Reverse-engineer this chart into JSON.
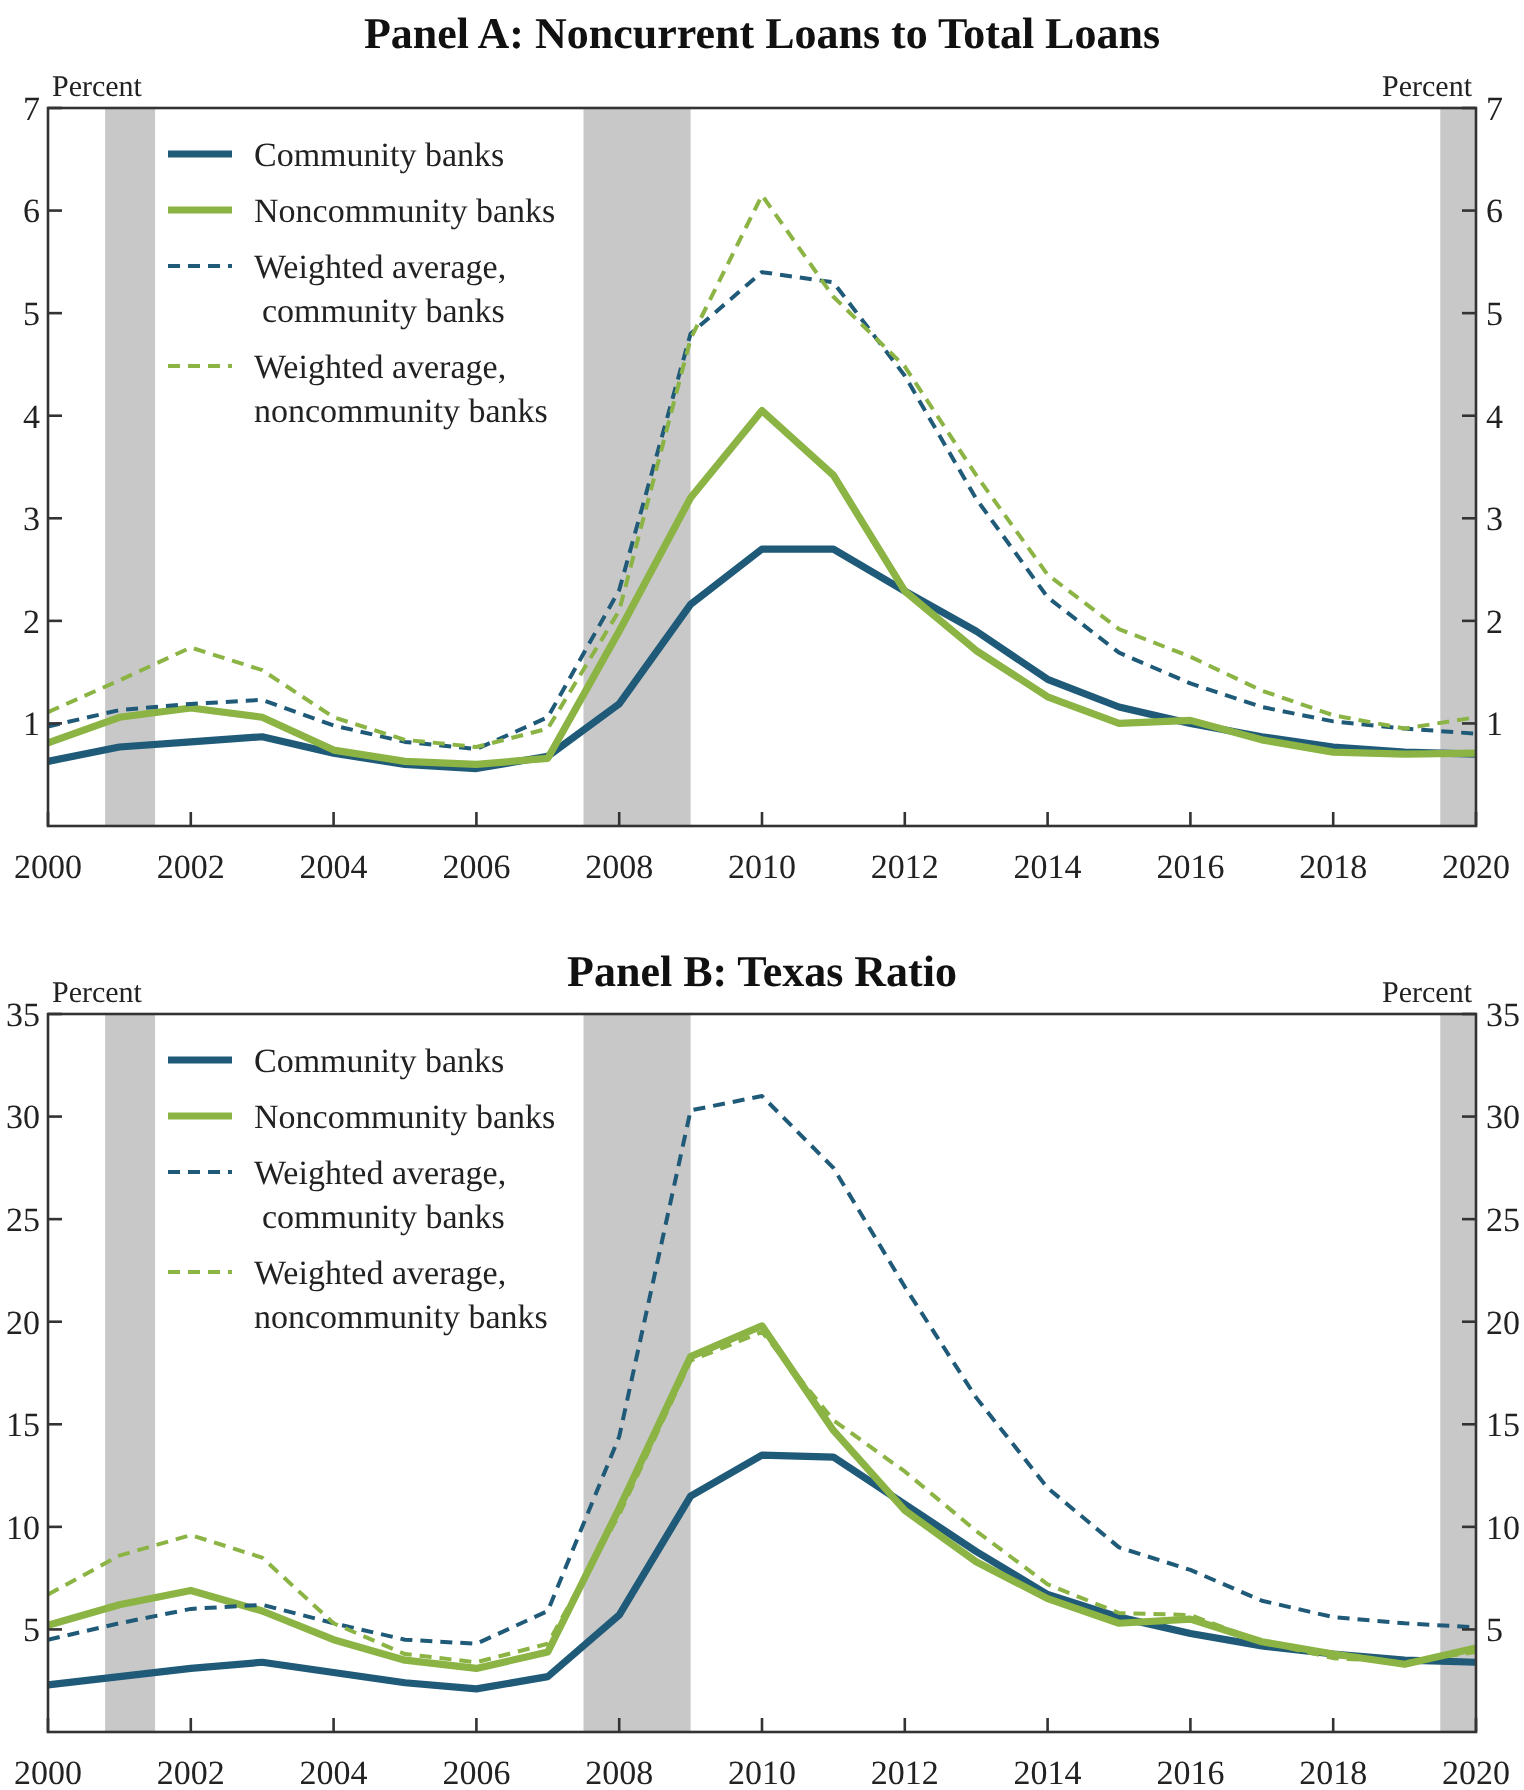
{
  "chart_data": [
    {
      "type": "line",
      "title": "Panel A: Noncurrent Loans to Total Loans",
      "ylabel": "Percent",
      "y2label": "Percent",
      "legend": "top left",
      "x": [
        2000,
        2001,
        2002,
        2003,
        2004,
        2005,
        2006,
        2007,
        2008,
        2009,
        2010,
        2011,
        2012,
        2013,
        2014,
        2015,
        2016,
        2017,
        2018,
        2019,
        2020
      ],
      "xlim": [
        2000,
        2020
      ],
      "xticks": [
        2000,
        2002,
        2004,
        2006,
        2008,
        2010,
        2012,
        2014,
        2016,
        2018,
        2020
      ],
      "ylim": [
        0,
        7
      ],
      "yticks": [
        1,
        2,
        3,
        4,
        5,
        6,
        7
      ],
      "y2lim": [
        0,
        7
      ],
      "y2ticks": [
        1,
        2,
        3,
        4,
        5,
        6,
        7
      ],
      "bands": [
        {
          "axis": "x",
          "from": 2000.8,
          "to": 2001.5,
          "color": "#c8c8c8"
        },
        {
          "axis": "x",
          "from": 2007.5,
          "to": 2009,
          "color": "#c8c8c8"
        },
        {
          "axis": "x",
          "from": 2019.5,
          "to": 2020,
          "color": "#c8c8c8"
        }
      ],
      "series": [
        {
          "name": "Community banks",
          "color": "#1f5a78",
          "line_style": "solid",
          "values": [
            0.63,
            0.77,
            0.82,
            0.87,
            0.71,
            0.6,
            0.56,
            0.68,
            1.19,
            2.16,
            2.7,
            2.7,
            2.29,
            1.9,
            1.43,
            1.16,
            1.0,
            0.87,
            0.77,
            0.72,
            0.7
          ]
        },
        {
          "name": "Noncommunity banks",
          "color": "#8bb444",
          "line_style": "solid",
          "values": [
            0.81,
            1.06,
            1.15,
            1.06,
            0.74,
            0.63,
            0.6,
            0.66,
            1.9,
            3.2,
            4.05,
            3.42,
            2.29,
            1.71,
            1.26,
            1.0,
            1.03,
            0.84,
            0.72,
            0.7,
            0.71
          ]
        },
        {
          "name": "Weighted average, community banks",
          "color": "#1f5a78",
          "line_style": "dashed",
          "values": [
            0.97,
            1.13,
            1.19,
            1.23,
            0.98,
            0.82,
            0.75,
            1.06,
            2.3,
            4.8,
            5.4,
            5.3,
            4.39,
            3.19,
            2.23,
            1.69,
            1.39,
            1.16,
            1.02,
            0.95,
            0.9
          ]
        },
        {
          "name": "Weighted average, noncommunity banks",
          "color": "#8bb444",
          "line_style": "dashed",
          "values": [
            1.11,
            1.42,
            1.74,
            1.52,
            1.06,
            0.84,
            0.77,
            0.95,
            2.1,
            4.75,
            6.15,
            5.16,
            4.48,
            3.42,
            2.45,
            1.92,
            1.65,
            1.32,
            1.08,
            0.95,
            1.06
          ]
        }
      ]
    },
    {
      "type": "line",
      "title": "Panel B: Texas Ratio",
      "ylabel": "Percent",
      "y2label": "Percent",
      "legend": "top left",
      "x": [
        2000,
        2001,
        2002,
        2003,
        2004,
        2005,
        2006,
        2007,
        2008,
        2009,
        2010,
        2011,
        2012,
        2013,
        2014,
        2015,
        2016,
        2017,
        2018,
        2019,
        2020
      ],
      "xlim": [
        2000,
        2020
      ],
      "xticks": [
        2000,
        2002,
        2004,
        2006,
        2008,
        2010,
        2012,
        2014,
        2016,
        2018,
        2020
      ],
      "ylim": [
        0,
        35
      ],
      "yticks": [
        5,
        10,
        15,
        20,
        25,
        30,
        35
      ],
      "y2lim": [
        0,
        35
      ],
      "y2ticks": [
        5,
        10,
        15,
        20,
        25,
        30,
        35
      ],
      "bands": [
        {
          "axis": "x",
          "from": 2000.8,
          "to": 2001.5,
          "color": "#c8c8c8"
        },
        {
          "axis": "x",
          "from": 2007.5,
          "to": 2009,
          "color": "#c8c8c8"
        },
        {
          "axis": "x",
          "from": 2019.5,
          "to": 2020,
          "color": "#c8c8c8"
        }
      ],
      "series": [
        {
          "name": "Community banks",
          "color": "#1f5a78",
          "line_style": "solid",
          "values": [
            2.3,
            2.7,
            3.1,
            3.4,
            2.9,
            2.4,
            2.1,
            2.7,
            5.7,
            11.5,
            13.5,
            13.4,
            11.1,
            8.8,
            6.7,
            5.6,
            4.8,
            4.2,
            3.8,
            3.5,
            3.4
          ]
        },
        {
          "name": "Noncommunity banks",
          "color": "#8bb444",
          "line_style": "solid",
          "values": [
            5.2,
            6.2,
            6.9,
            5.9,
            4.5,
            3.5,
            3.1,
            3.9,
            10.9,
            18.3,
            19.8,
            14.7,
            10.8,
            8.3,
            6.5,
            5.3,
            5.5,
            4.4,
            3.8,
            3.3,
            4.1
          ]
        },
        {
          "name": "Weighted average, community banks",
          "color": "#1f5a78",
          "line_style": "dashed",
          "values": [
            4.5,
            5.3,
            6.0,
            6.2,
            5.3,
            4.5,
            4.3,
            5.9,
            14.4,
            30.3,
            31.0,
            27.5,
            21.7,
            16.3,
            11.9,
            9.0,
            7.9,
            6.4,
            5.6,
            5.3,
            5.1
          ]
        },
        {
          "name": "Weighted average, noncommunity banks",
          "color": "#8bb444",
          "line_style": "dashed",
          "values": [
            6.7,
            8.6,
            9.6,
            8.5,
            5.3,
            3.8,
            3.4,
            4.3,
            10.6,
            18.1,
            19.5,
            15.2,
            12.7,
            9.8,
            7.2,
            5.8,
            5.7,
            4.4,
            3.6,
            3.4,
            3.9
          ]
        }
      ]
    }
  ]
}
